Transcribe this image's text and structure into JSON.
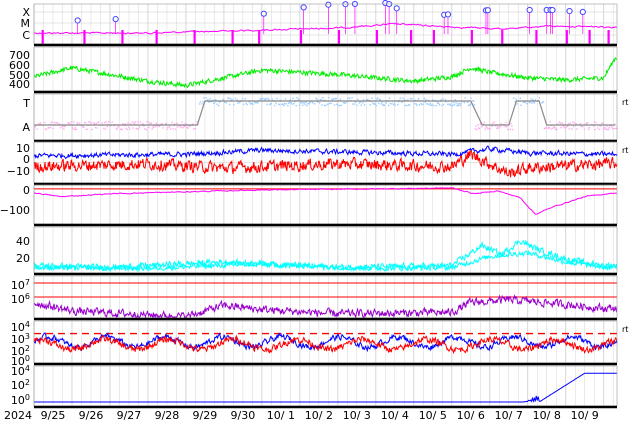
{
  "chart_data": {
    "type": "line",
    "x_axis": {
      "year_label": "2024",
      "tick_labels": [
        "9/25",
        "9/26",
        "9/27",
        "9/28",
        "9/29",
        "9/30",
        "10/ 1",
        "10/ 2",
        "10/ 3",
        "10/ 4",
        "10/ 5",
        "10/ 6",
        "10/ 7",
        "10/ 8",
        "10/ 9"
      ],
      "range_days": [
        0,
        15.35
      ],
      "grid": true
    },
    "colors": {
      "magenta": "#ff00ff",
      "green": "#00ee00",
      "lightblue": "#99ccff",
      "pink": "#ffaaee",
      "blue": "#0000ff",
      "red": "#ff0000",
      "cyan": "#00ffff",
      "purple": "#9900cc",
      "gray": "#888888",
      "grid": "#cccccc",
      "separator": "#000000"
    },
    "panels": [
      {
        "id": "xray-class",
        "tick_labels": [
          "X",
          "M",
          "C"
        ],
        "flare_markers_days": [
          1.15,
          2.15,
          6.05,
          7.1,
          7.75,
          8.2,
          8.45,
          9.25,
          9.35,
          9.55,
          10.8,
          10.9,
          11.9,
          11.95,
          13.05,
          13.5,
          13.6,
          13.65,
          14.1,
          14.45
        ]
      },
      {
        "id": "solar-wind-speed",
        "tick_labels": [
          "700",
          "600",
          "500",
          "400"
        ],
        "ylim": [
          350,
          750
        ]
      },
      {
        "id": "imf-sector",
        "tick_labels": [
          "T",
          "A"
        ],
        "right_label": "rt"
      },
      {
        "id": "imf-bz",
        "tick_labels": [
          "10",
          "0",
          "−10"
        ],
        "ylim": [
          -15,
          15
        ],
        "right_label": "rt"
      },
      {
        "id": "dst",
        "tick_labels": [
          "0",
          "−100"
        ],
        "ylim": [
          -180,
          20
        ],
        "reference_value": 0
      },
      {
        "id": "auroral-index",
        "tick_labels": [
          "40",
          "20"
        ],
        "ylim": [
          0,
          50
        ]
      },
      {
        "id": "electron-flux",
        "tick_labels": [
          "10^7",
          "10^6"
        ],
        "ylim_log10": [
          4.5,
          7.5
        ],
        "reference_values": [
          10000000,
          1000000
        ]
      },
      {
        "id": "proton-flux-low",
        "tick_labels": [
          "10^4",
          "10^3",
          "10^2",
          "10^0"
        ],
        "ylim_log10": [
          -0.5,
          4.5
        ],
        "threshold": 1000,
        "right_label": "rt"
      },
      {
        "id": "proton-flux-high",
        "tick_labels": [
          "10^4",
          "10^2",
          "10^0"
        ],
        "ylim_log10": [
          -0.5,
          4.5
        ]
      }
    ]
  }
}
